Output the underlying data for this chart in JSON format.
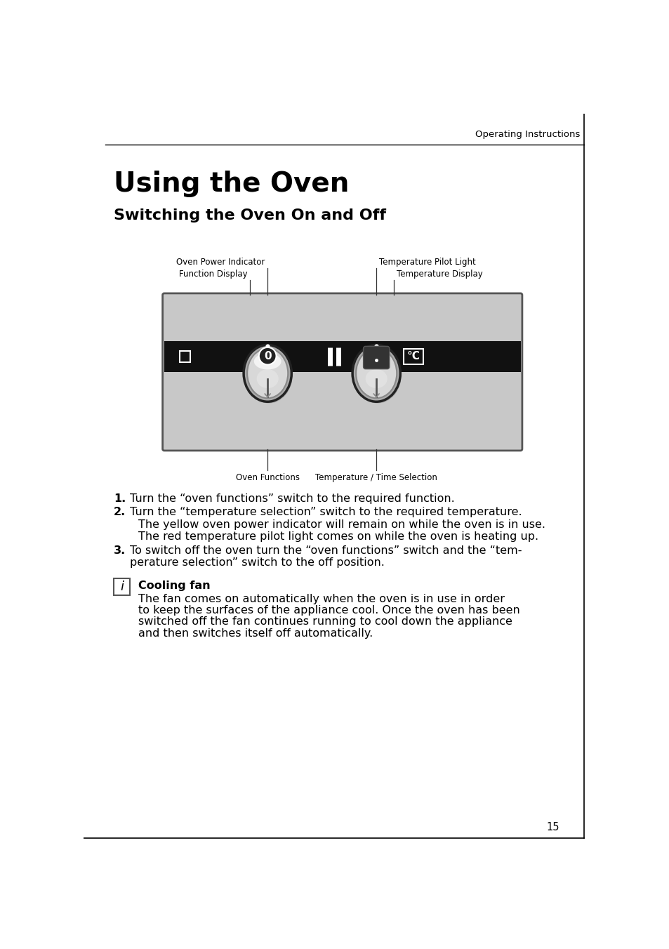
{
  "bg_color": "#ffffff",
  "header_text": "Operating Instructions",
  "title": "Using the Oven",
  "subtitle": "Switching the Oven On and Off",
  "diagram_bg": "#c8c8c8",
  "diagram_border": "#555555",
  "control_panel_bg": "#111111",
  "note_title": "Cooling fan",
  "note_body": "The fan comes on automatically when the oven is in use in order\nto keep the surfaces of the appliance cool. Once the oven has been\nswitched off the fan continues running to cool down the appliance\nand then switches itself off automatically.",
  "page_number": "15",
  "step1": "Turn the “oven functions” switch to the required function.",
  "step2": "Turn the “temperature selection” switch to the required temperature.",
  "step2a": "The yellow oven power indicator will remain on while the oven is in use.",
  "step2b": "The red temperature pilot light comes on while the oven is heating up.",
  "step3a": "To switch off the oven turn the “oven functions” switch and the “tem-",
  "step3b": "perature selection” switch to the off position."
}
